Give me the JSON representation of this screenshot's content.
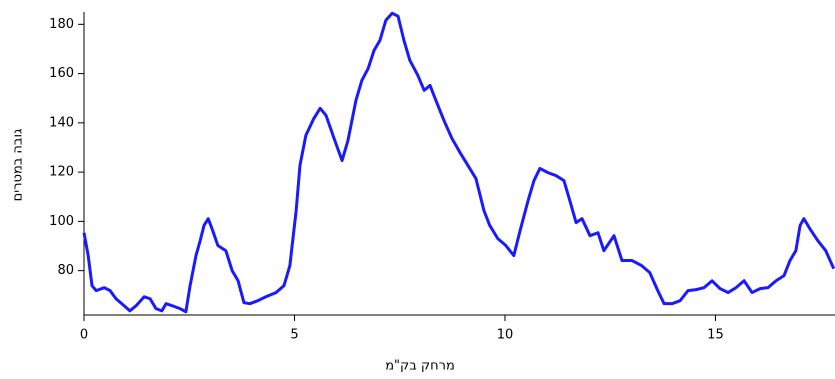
{
  "chart_data": {
    "type": "line",
    "x_label": "מרחק בק\"מ",
    "y_label": "גובה במטרים",
    "xlim": [
      0,
      17.84
    ],
    "ylim": [
      62,
      185
    ],
    "xticks": [
      0,
      5,
      10,
      15
    ],
    "yticks": [
      80,
      100,
      120,
      140,
      160,
      180
    ],
    "grid": false,
    "series": [
      {
        "color": "#1a1aff",
        "x": [
          0,
          0.1,
          0.19,
          0.29,
          0.48,
          0.62,
          0.76,
          0.95,
          1.09,
          1.24,
          1.43,
          1.57,
          1.71,
          1.85,
          1.95,
          2.09,
          2.28,
          2.42,
          2.52,
          2.66,
          2.76,
          2.85,
          2.95,
          3.04,
          3.18,
          3.37,
          3.52,
          3.66,
          3.8,
          3.94,
          4.13,
          4.32,
          4.56,
          4.75,
          4.89,
          5.04,
          5.13,
          5.27,
          5.46,
          5.61,
          5.75,
          5.94,
          6.13,
          6.27,
          6.46,
          6.6,
          6.75,
          6.89,
          7.03,
          7.17,
          7.32,
          7.46,
          7.6,
          7.74,
          7.93,
          8.08,
          8.22,
          8.36,
          8.55,
          8.74,
          8.93,
          9.12,
          9.31,
          9.5,
          9.64,
          9.83,
          10.02,
          10.21,
          10.36,
          10.55,
          10.69,
          10.83,
          11.02,
          11.21,
          11.4,
          11.54,
          11.69,
          11.83,
          12.02,
          12.21,
          12.35,
          12.59,
          12.78,
          13.02,
          13.25,
          13.44,
          13.63,
          13.78,
          13.97,
          14.16,
          14.35,
          14.54,
          14.73,
          14.92,
          15.11,
          15.3,
          15.49,
          15.68,
          15.87,
          16.06,
          16.25,
          16.44,
          16.63,
          16.77,
          16.91,
          17.01,
          17.1,
          17.24,
          17.43,
          17.62,
          17.81
        ],
        "values": [
          95.4,
          86.1,
          73.9,
          71.9,
          73.1,
          71.9,
          68.6,
          65.8,
          63.7,
          65.8,
          69.4,
          68.6,
          64.6,
          63.7,
          66.6,
          65.8,
          64.6,
          63.3,
          73.9,
          86.1,
          92.2,
          98.3,
          101.1,
          97.1,
          90.2,
          88.1,
          80,
          75.9,
          67,
          66.6,
          67.8,
          69.4,
          71.1,
          73.9,
          82,
          104.4,
          122.7,
          134.9,
          141.8,
          145.9,
          143,
          133.7,
          124.7,
          132.8,
          149.1,
          157.2,
          162.1,
          169.4,
          173.5,
          181.6,
          184.5,
          183.3,
          173.5,
          165.4,
          159.3,
          153.2,
          155.2,
          149.1,
          141,
          133.7,
          128,
          122.7,
          117.4,
          104.4,
          98.3,
          93,
          90.2,
          86.1,
          96.3,
          108.5,
          116.6,
          121.5,
          119.8,
          118.6,
          116.6,
          108.5,
          99.5,
          101.1,
          94.2,
          95.4,
          88.1,
          94.2,
          84.1,
          84.1,
          82,
          79.2,
          71.9,
          66.6,
          66.6,
          67.8,
          71.9,
          72.3,
          73.1,
          75.9,
          72.7,
          71.1,
          73.1,
          75.9,
          71.1,
          72.7,
          73.1,
          75.9,
          78,
          84.1,
          88.1,
          98.3,
          101.1,
          97.1,
          92.2,
          88.1,
          80.8
        ]
      }
    ]
  }
}
